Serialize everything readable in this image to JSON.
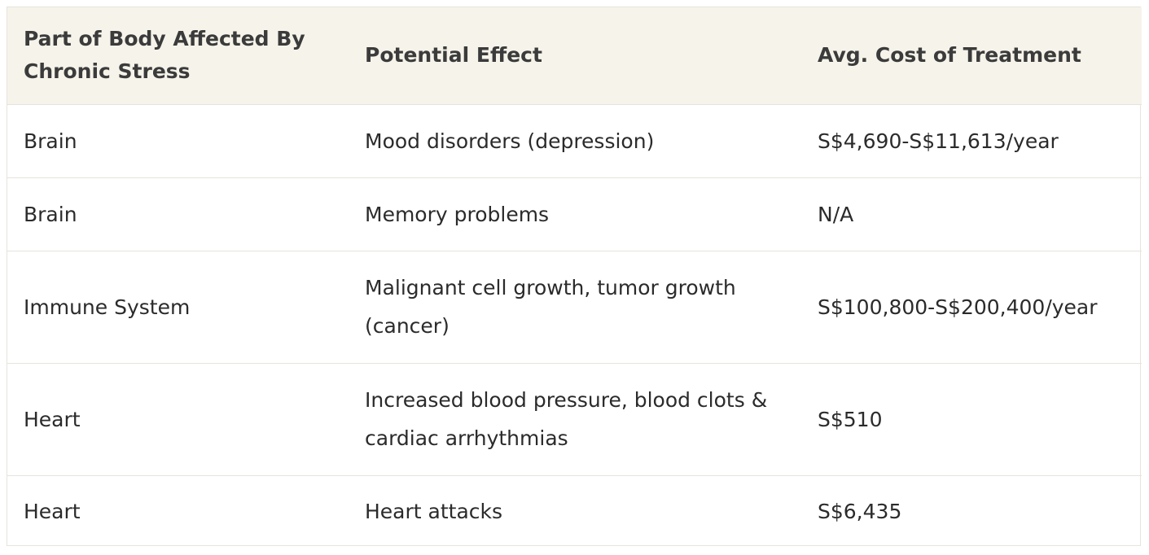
{
  "table": {
    "headers": [
      "Part of Body Affected By Chronic Stress",
      "Potential Effect",
      "Avg. Cost of Treatment"
    ],
    "rows": [
      [
        "Brain",
        "Mood disorders (depression)",
        "S$4,690-S$11,613/year"
      ],
      [
        "Brain",
        "Memory problems",
        "N/A"
      ],
      [
        "Immune System",
        "Malignant cell growth, tumor growth (cancer)",
        "S$100,800-S$200,400/year"
      ],
      [
        "Heart",
        "Increased blood pressure, blood clots & cardiac arrhythmias",
        "S$510"
      ],
      [
        "Heart",
        "Heart attacks",
        "S$6,435"
      ]
    ]
  },
  "colors": {
    "header_background": "#f6f3ea",
    "border": "#e7e4dc",
    "text": "#2b2b2b"
  }
}
